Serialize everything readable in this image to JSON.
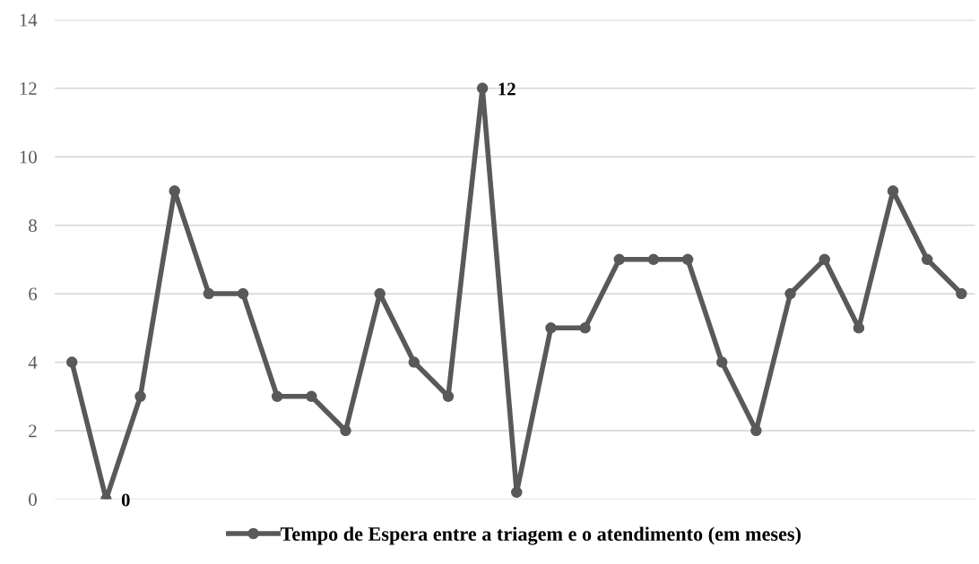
{
  "chart_data": {
    "type": "line",
    "categories": [
      null,
      null,
      null,
      null,
      null,
      null,
      null,
      null,
      null,
      null,
      null,
      null,
      null,
      null,
      null,
      null,
      null,
      null,
      null,
      null,
      null,
      null,
      null,
      null,
      null,
      null,
      null
    ],
    "series": [
      {
        "name": "Tempo de Espera entre a triagem e o atendimento (em meses)",
        "color": "#595959",
        "values": [
          4,
          0,
          3,
          9,
          6,
          6,
          3,
          3,
          2,
          6,
          4,
          3,
          12,
          0.2,
          5,
          5,
          7,
          7,
          7,
          4,
          2,
          6,
          7,
          5,
          9,
          7,
          6
        ],
        "value_labels": [
          null,
          "0",
          null,
          null,
          null,
          null,
          null,
          null,
          null,
          null,
          null,
          null,
          "12",
          null,
          null,
          null,
          null,
          null,
          null,
          null,
          null,
          null,
          null,
          null,
          null,
          null,
          null
        ]
      }
    ],
    "ylim": [
      0,
      14
    ],
    "yticks": [
      0,
      2,
      4,
      6,
      8,
      10,
      12,
      14
    ],
    "grid": "y",
    "legend": "bottom",
    "marker": "circle",
    "line_style": "solid",
    "tick_labels": "y"
  }
}
